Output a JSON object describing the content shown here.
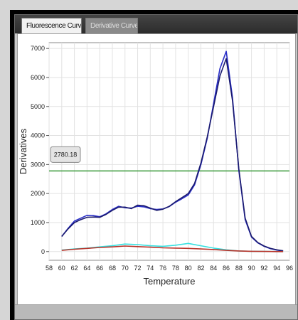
{
  "window": {
    "tabs": [
      {
        "label": "Fluorescence Curve",
        "active": true
      },
      {
        "label": "Derivative Curve",
        "active": false
      }
    ]
  },
  "chart_data": {
    "type": "line",
    "xlabel": "Temperature",
    "ylabel": "Derivatives",
    "xlim": [
      58,
      96
    ],
    "ylim": [
      -300,
      7200
    ],
    "xticks": [
      58,
      60,
      62,
      64,
      66,
      68,
      70,
      72,
      74,
      76,
      78,
      80,
      82,
      84,
      86,
      88,
      90,
      92,
      94,
      96
    ],
    "xtick_labels": [
      "58",
      "60",
      "62",
      "64",
      "66",
      "68",
      "70",
      "72",
      "74",
      "76",
      "78",
      "80",
      "82",
      "84",
      "86",
      "88",
      "90",
      "92",
      "94",
      "96"
    ],
    "yticks": [
      0,
      1000,
      2000,
      3000,
      4000,
      5000,
      6000,
      7000
    ],
    "ytick_labels": [
      "0",
      "1000",
      "2000",
      "3000",
      "4000",
      "5000",
      "6000",
      "7000"
    ],
    "grid": true,
    "threshold": {
      "value": 2780,
      "label": "2780.18",
      "color": "#3a9a3a"
    },
    "series": [
      {
        "color": "#2a2fc8",
        "x": [
          60,
          61,
          62,
          63,
          64,
          65,
          66,
          67,
          68,
          69,
          70,
          71,
          72,
          73,
          74,
          75,
          76,
          77,
          78,
          79,
          80,
          81,
          82,
          83,
          84,
          85,
          86,
          87,
          88,
          89,
          90,
          91,
          92,
          93,
          94,
          95
        ],
        "y": [
          520,
          800,
          1050,
          1150,
          1250,
          1240,
          1200,
          1300,
          1450,
          1560,
          1510,
          1500,
          1560,
          1540,
          1480,
          1450,
          1470,
          1550,
          1700,
          1820,
          1950,
          2300,
          3000,
          3900,
          5100,
          6300,
          6900,
          5300,
          2800,
          1100,
          500,
          300,
          180,
          100,
          50,
          20
        ]
      },
      {
        "color": "#1a1a6e",
        "x": [
          60,
          61,
          62,
          63,
          64,
          65,
          66,
          67,
          68,
          69,
          70,
          71,
          72,
          73,
          74,
          75,
          76,
          77,
          78,
          79,
          80,
          81,
          82,
          83,
          84,
          85,
          86,
          87,
          88,
          89,
          90,
          91,
          92,
          93,
          94,
          95
        ],
        "y": [
          520,
          780,
          1000,
          1100,
          1180,
          1190,
          1180,
          1280,
          1420,
          1530,
          1530,
          1480,
          1600,
          1580,
          1500,
          1420,
          1460,
          1560,
          1720,
          1860,
          2000,
          2350,
          3050,
          3950,
          5000,
          6050,
          6650,
          5200,
          2850,
          1150,
          520,
          310,
          190,
          110,
          60,
          25
        ]
      },
      {
        "color": "#36e0e0",
        "x": [
          60,
          62,
          64,
          66,
          68,
          70,
          72,
          74,
          76,
          78,
          80,
          82,
          84,
          86,
          88,
          90,
          92,
          94,
          95
        ],
        "y": [
          50,
          90,
          120,
          160,
          200,
          260,
          240,
          200,
          180,
          220,
          280,
          200,
          120,
          60,
          20,
          10,
          5,
          0,
          0
        ]
      },
      {
        "color": "#b8332a",
        "x": [
          60,
          62,
          64,
          66,
          68,
          70,
          72,
          74,
          76,
          78,
          80,
          82,
          84,
          86,
          88,
          90,
          92,
          94,
          95
        ],
        "y": [
          40,
          80,
          110,
          140,
          160,
          190,
          170,
          150,
          130,
          120,
          110,
          90,
          70,
          40,
          20,
          10,
          5,
          0,
          0
        ]
      }
    ]
  }
}
